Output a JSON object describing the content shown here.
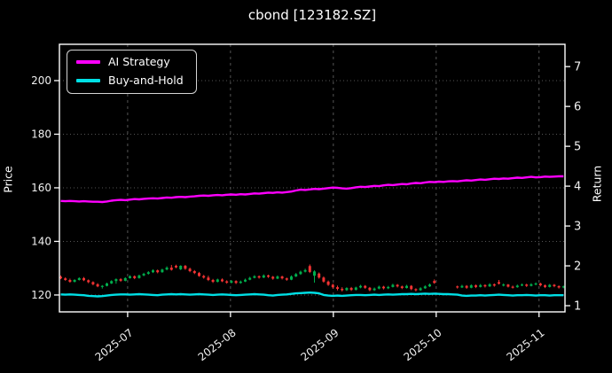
{
  "chart_data": {
    "type": "mixed-candlestick-line",
    "title": "cbond [123182.SZ]",
    "background_color": "#000000",
    "foreground_color": "#ffffff",
    "grid": {
      "show": true,
      "color": "#555555",
      "style": "dotted"
    },
    "x_axis": {
      "tick_labels": [
        "2025-07",
        "2025-08",
        "2025-09",
        "2025-10",
        "2025-11"
      ],
      "tick_indices": [
        14.5,
        36.8,
        59.1,
        81.4,
        103.7
      ],
      "n_points": 110,
      "label_rotation_deg": 38
    },
    "price_axis": {
      "label": "Price",
      "side": "left",
      "ticks": [
        120,
        140,
        160,
        180,
        200
      ],
      "range": [
        113.7,
        213.55
      ]
    },
    "return_axis": {
      "label": "Return",
      "side": "right",
      "ticks": [
        1,
        2,
        3,
        4,
        5,
        6,
        7
      ],
      "range": [
        0.845,
        7.56
      ]
    },
    "legend": {
      "position": "upper-left",
      "entries": [
        {
          "label": "AI Strategy",
          "color": "#ff00ff"
        },
        {
          "label": "Buy-and-Hold",
          "color": "#00e0e6"
        }
      ]
    },
    "series": [
      {
        "name": "AI Strategy",
        "color": "#ff00ff",
        "axis": "price",
        "values": [
          155.1,
          155.0,
          155.1,
          155.0,
          154.9,
          155.0,
          154.9,
          154.8,
          154.8,
          154.7,
          154.9,
          155.2,
          155.4,
          155.5,
          155.4,
          155.6,
          155.8,
          155.7,
          155.9,
          156.0,
          156.1,
          156.0,
          156.2,
          156.4,
          156.3,
          156.5,
          156.6,
          156.5,
          156.7,
          156.8,
          157.0,
          157.1,
          157.0,
          157.2,
          157.3,
          157.2,
          157.4,
          157.5,
          157.4,
          157.6,
          157.5,
          157.7,
          157.9,
          157.8,
          158.0,
          158.2,
          158.1,
          158.3,
          158.2,
          158.4,
          158.6,
          159.0,
          159.3,
          159.2,
          159.4,
          159.6,
          159.5,
          159.7,
          159.9,
          160.1,
          160.0,
          159.8,
          159.7,
          159.9,
          160.2,
          160.4,
          160.3,
          160.5,
          160.7,
          160.6,
          160.9,
          161.1,
          161.0,
          161.2,
          161.4,
          161.3,
          161.6,
          161.8,
          161.7,
          162.0,
          162.2,
          162.1,
          162.3,
          162.2,
          162.4,
          162.5,
          162.4,
          162.6,
          162.8,
          162.7,
          162.9,
          163.1,
          163.0,
          163.2,
          163.4,
          163.3,
          163.5,
          163.4,
          163.6,
          163.8,
          163.7,
          163.9,
          164.1,
          163.9,
          164.0,
          164.2,
          164.1,
          164.2,
          164.3,
          164.3
        ]
      },
      {
        "name": "Buy-and-Hold",
        "color": "#00e0e6",
        "axis": "price",
        "values": [
          120.2,
          120.1,
          120.2,
          120.1,
          120.0,
          119.9,
          119.7,
          119.6,
          119.5,
          119.6,
          119.8,
          120.0,
          120.1,
          120.2,
          120.2,
          120.1,
          120.2,
          120.3,
          120.2,
          120.1,
          120.0,
          119.9,
          120.1,
          120.2,
          120.3,
          120.2,
          120.3,
          120.2,
          120.1,
          120.2,
          120.3,
          120.2,
          120.1,
          120.0,
          120.1,
          120.2,
          120.1,
          120.0,
          119.9,
          120.0,
          120.1,
          120.2,
          120.3,
          120.2,
          120.1,
          119.9,
          119.8,
          120.0,
          120.1,
          120.2,
          120.4,
          120.6,
          120.7,
          120.8,
          120.9,
          120.8,
          120.6,
          120.0,
          119.8,
          119.7,
          119.8,
          119.7,
          119.8,
          119.9,
          120.0,
          120.0,
          119.9,
          120.0,
          120.1,
          120.0,
          120.1,
          120.2,
          120.1,
          120.2,
          120.3,
          120.3,
          120.4,
          120.3,
          120.4,
          120.5,
          120.4,
          120.5,
          120.4,
          120.3,
          120.3,
          120.2,
          120.1,
          119.8,
          119.7,
          119.8,
          119.8,
          119.9,
          119.8,
          119.9,
          120.0,
          120.1,
          120.0,
          119.9,
          119.8,
          119.9,
          119.9,
          120.0,
          119.9,
          119.8,
          119.9,
          119.9,
          119.8,
          119.9,
          119.9,
          119.9
        ]
      }
    ],
    "candles": {
      "up_color": "#00ae4d",
      "down_color": "#f23333",
      "ohlc": [
        [
          126.8,
          127.3,
          125.9,
          126.2
        ],
        [
          126.2,
          126.6,
          125.3,
          125.6
        ],
        [
          125.6,
          126.1,
          124.6,
          124.9
        ],
        [
          124.9,
          125.9,
          124.7,
          125.6
        ],
        [
          125.6,
          126.6,
          125.4,
          126.3
        ],
        [
          126.3,
          126.7,
          125.2,
          125.5
        ],
        [
          125.5,
          125.8,
          124.4,
          124.8
        ],
        [
          124.8,
          125.1,
          123.6,
          124.0
        ],
        [
          124.0,
          124.4,
          122.9,
          123.2
        ],
        [
          123.2,
          123.7,
          122.4,
          123.4
        ],
        [
          123.4,
          124.6,
          123.2,
          124.3
        ],
        [
          124.3,
          125.5,
          124.1,
          125.2
        ],
        [
          125.2,
          126.2,
          124.2,
          125.9
        ],
        [
          125.9,
          126.3,
          124.9,
          125.3
        ],
        [
          125.3,
          126.6,
          125.1,
          126.3
        ],
        [
          126.3,
          127.4,
          126.1,
          127.0
        ],
        [
          127.0,
          127.3,
          125.9,
          126.3
        ],
        [
          126.3,
          127.6,
          126.1,
          127.3
        ],
        [
          127.3,
          128.3,
          127.0,
          127.9
        ],
        [
          127.9,
          128.9,
          127.6,
          128.5
        ],
        [
          128.5,
          129.6,
          128.2,
          129.2
        ],
        [
          129.2,
          129.5,
          128.1,
          128.5
        ],
        [
          128.5,
          129.8,
          128.3,
          129.5
        ],
        [
          129.5,
          130.7,
          129.2,
          130.2
        ],
        [
          130.2,
          131.2,
          129.1,
          129.4
        ],
        [
          130.9,
          131.3,
          130.0,
          130.3
        ],
        [
          129.6,
          131.1,
          129.3,
          130.9
        ],
        [
          130.9,
          131.2,
          129.4,
          129.8
        ],
        [
          129.8,
          130.2,
          128.5,
          128.9
        ],
        [
          128.9,
          129.3,
          127.8,
          128.2
        ],
        [
          128.2,
          128.6,
          126.8,
          127.1
        ],
        [
          127.1,
          127.5,
          126.1,
          126.5
        ],
        [
          126.5,
          127.2,
          125.2,
          125.6
        ],
        [
          125.6,
          126.0,
          124.5,
          124.9
        ],
        [
          124.9,
          126.1,
          124.7,
          125.8
        ],
        [
          125.8,
          126.2,
          124.8,
          125.1
        ],
        [
          125.1,
          125.5,
          124.2,
          124.6
        ],
        [
          124.6,
          125.6,
          124.3,
          125.2
        ],
        [
          125.2,
          125.5,
          124.1,
          124.5
        ],
        [
          124.5,
          125.4,
          124.2,
          125.0
        ],
        [
          125.0,
          126.1,
          124.8,
          125.7
        ],
        [
          125.7,
          126.8,
          125.5,
          126.4
        ],
        [
          126.4,
          127.4,
          126.2,
          127.0
        ],
        [
          127.0,
          127.3,
          126.1,
          126.5
        ],
        [
          126.5,
          127.7,
          126.3,
          127.3
        ],
        [
          127.3,
          127.6,
          126.4,
          126.8
        ],
        [
          126.8,
          127.1,
          125.7,
          126.1
        ],
        [
          126.1,
          127.3,
          125.9,
          126.9
        ],
        [
          126.9,
          127.2,
          125.8,
          126.2
        ],
        [
          126.2,
          126.5,
          125.3,
          125.7
        ],
        [
          125.7,
          127.3,
          125.5,
          126.9
        ],
        [
          126.9,
          128.2,
          126.7,
          127.8
        ],
        [
          127.8,
          129.1,
          127.5,
          128.7
        ],
        [
          128.7,
          129.8,
          128.4,
          129.3
        ],
        [
          130.8,
          131.4,
          128.2,
          128.6
        ],
        [
          127.2,
          129.2,
          124.6,
          128.8
        ],
        [
          128.0,
          128.4,
          126.1,
          126.5
        ],
        [
          126.5,
          126.9,
          124.6,
          125.0
        ],
        [
          125.0,
          125.4,
          123.4,
          123.8
        ],
        [
          123.8,
          124.2,
          122.4,
          122.9
        ],
        [
          122.9,
          123.5,
          121.7,
          122.3
        ],
        [
          122.3,
          122.9,
          121.3,
          121.8
        ],
        [
          121.8,
          122.9,
          121.5,
          122.6
        ],
        [
          122.6,
          123.0,
          121.5,
          121.9
        ],
        [
          121.9,
          123.1,
          121.7,
          122.8
        ],
        [
          122.8,
          123.8,
          122.5,
          123.4
        ],
        [
          123.4,
          123.7,
          122.3,
          122.7
        ],
        [
          122.7,
          123.0,
          121.4,
          121.8
        ],
        [
          121.8,
          122.8,
          121.5,
          122.4
        ],
        [
          122.4,
          123.5,
          122.1,
          123.1
        ],
        [
          123.1,
          123.4,
          122.1,
          122.5
        ],
        [
          122.5,
          123.4,
          122.2,
          123.0
        ],
        [
          123.0,
          124.2,
          122.8,
          123.8
        ],
        [
          123.8,
          124.1,
          122.8,
          123.2
        ],
        [
          123.2,
          123.5,
          122.2,
          122.6
        ],
        [
          122.6,
          123.8,
          122.4,
          123.4
        ],
        [
          123.4,
          123.7,
          121.8,
          122.2
        ],
        [
          122.2,
          122.5,
          121.3,
          121.8
        ],
        [
          121.8,
          122.9,
          121.5,
          122.5
        ],
        [
          122.5,
          123.6,
          122.3,
          123.2
        ],
        [
          123.2,
          124.3,
          123.0,
          123.9
        ],
        [
          125.2,
          125.8,
          124.2,
          124.5
        ],
        null,
        null,
        null,
        null,
        [
          123.2,
          123.5,
          122.4,
          122.8
        ],
        [
          122.8,
          123.8,
          122.6,
          123.4
        ],
        [
          123.4,
          123.7,
          122.3,
          122.7
        ],
        [
          122.7,
          124.0,
          122.5,
          123.6
        ],
        [
          123.6,
          123.9,
          122.6,
          123.0
        ],
        [
          123.0,
          124.1,
          122.8,
          123.7
        ],
        [
          123.7,
          124.0,
          122.8,
          123.2
        ],
        [
          123.2,
          124.4,
          123.0,
          124.0
        ],
        [
          124.0,
          124.3,
          123.1,
          123.5
        ],
        [
          124.8,
          125.6,
          123.9,
          124.2
        ],
        [
          123.5,
          124.3,
          123.2,
          123.9
        ],
        [
          123.9,
          124.1,
          122.8,
          123.1
        ],
        [
          123.1,
          123.5,
          122.4,
          122.9
        ],
        [
          122.9,
          123.9,
          122.7,
          123.5
        ],
        [
          123.5,
          124.3,
          123.3,
          123.9
        ],
        [
          123.9,
          124.2,
          123.0,
          123.4
        ],
        [
          123.4,
          124.4,
          123.2,
          124.0
        ],
        [
          124.0,
          124.7,
          123.6,
          124.3
        ],
        [
          124.3,
          124.6,
          123.2,
          123.6
        ],
        [
          123.6,
          123.9,
          122.6,
          123.0
        ],
        [
          123.0,
          124.1,
          122.8,
          123.8
        ],
        [
          123.8,
          124.1,
          122.9,
          123.3
        ],
        [
          123.3,
          123.6,
          122.4,
          122.8
        ],
        [
          122.8,
          123.5,
          122.5,
          123.2
        ]
      ]
    }
  }
}
